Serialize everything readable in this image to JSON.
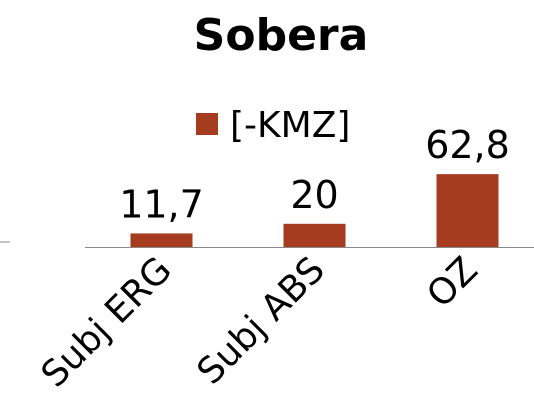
{
  "chart_data": {
    "type": "bar",
    "title": "Sobera",
    "categories": [
      "Subj ERG",
      "Subj ABS",
      "OZ"
    ],
    "series": [
      {
        "name": "[-KMZ]",
        "color": "#a53b1f",
        "values": [
          11.7,
          20,
          62.8
        ],
        "value_labels": [
          "11,7",
          "20",
          "62,8"
        ]
      }
    ]
  }
}
